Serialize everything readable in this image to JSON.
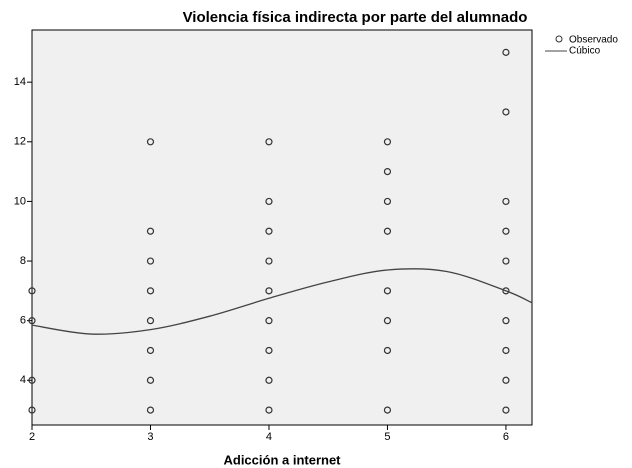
{
  "chart_data": {
    "type": "scatter",
    "title": "Violencia física indirecta por parte del alumnado",
    "x_label": "Adicción a internet",
    "xlim": [
      2,
      6.22
    ],
    "xticks": [
      2,
      3,
      4,
      5,
      6
    ],
    "ylim": [
      2.5,
      15.75
    ],
    "yticks": [
      4,
      6,
      8,
      10,
      12,
      14
    ],
    "series": [
      {
        "name": "Observado",
        "color": "#333333",
        "x": [
          2,
          2,
          2,
          2,
          3,
          3,
          3,
          3,
          3,
          3,
          3,
          3,
          4,
          4,
          4,
          4,
          4,
          4,
          4,
          4,
          4,
          5,
          5,
          5,
          5,
          5,
          5,
          5,
          5,
          6,
          6,
          6,
          6,
          6,
          6,
          6,
          6,
          6,
          6
        ],
        "values": [
          3,
          4,
          6,
          7,
          3,
          4,
          5,
          6,
          7,
          8,
          9,
          12,
          3,
          4,
          5,
          6,
          7,
          8,
          9,
          10,
          12,
          3,
          5,
          6,
          7,
          9,
          10,
          11,
          12,
          3,
          4,
          5,
          6,
          7,
          8,
          9,
          10,
          13,
          15
        ]
      },
      {
        "name": "Cúbico",
        "type": "line",
        "color": "#444444",
        "x": [
          2,
          2.5,
          3,
          3.5,
          4,
          4.5,
          5,
          5.5,
          6,
          6.22
        ],
        "values": [
          5.85,
          5.55,
          5.7,
          6.15,
          6.75,
          7.3,
          7.7,
          7.65,
          7.0,
          6.6
        ]
      }
    ]
  }
}
